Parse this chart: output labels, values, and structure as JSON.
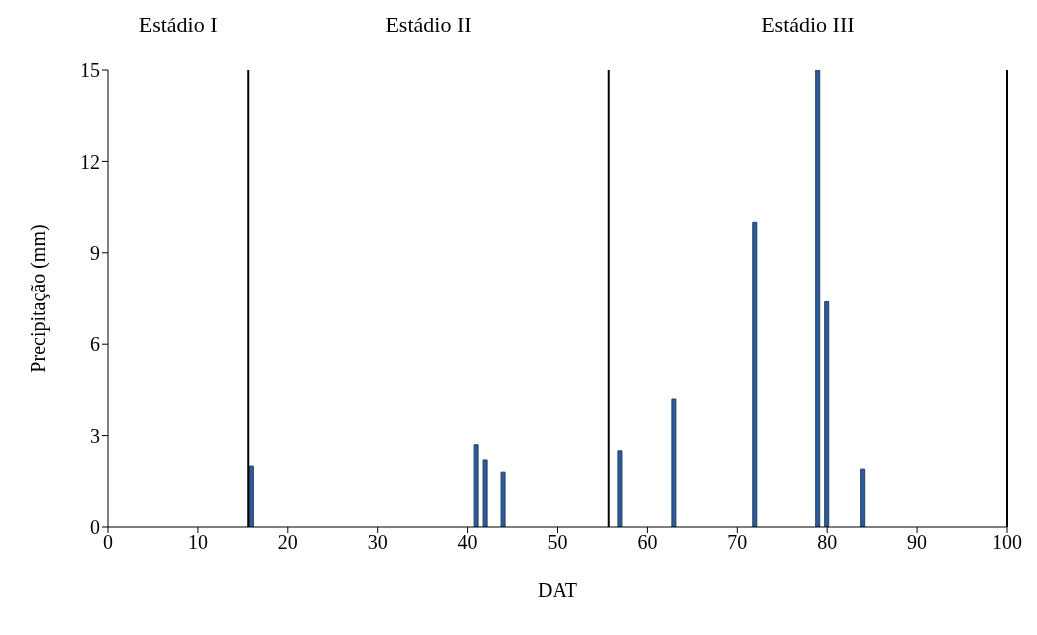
{
  "chart_data": {
    "type": "bar",
    "xlabel": "DAT",
    "ylabel": "Precipitação (mm)",
    "x": [
      16,
      41,
      42,
      44,
      57,
      63,
      72,
      79,
      80,
      84
    ],
    "values": [
      2.0,
      2.7,
      2.2,
      1.8,
      2.5,
      4.2,
      10.0,
      15.0,
      7.4,
      1.9
    ],
    "color": "#2e5b9a",
    "xlim": [
      0,
      100
    ],
    "xticks": [
      0,
      10,
      20,
      30,
      40,
      50,
      60,
      70,
      80,
      90,
      100
    ],
    "ylim": [
      0,
      15
    ],
    "yticks": [
      0,
      3,
      6,
      9,
      12,
      15
    ],
    "grid": false,
    "legend": false,
    "ref_lines": [
      {
        "axis": "x",
        "value": 15.6,
        "color": "#000000"
      },
      {
        "axis": "x",
        "value": 55.7,
        "color": "#000000"
      },
      {
        "axis": "x",
        "value": 100,
        "color": "#000000"
      }
    ],
    "annotations": [
      "Estádio I",
      "Estádio II",
      "Estádio III"
    ]
  }
}
